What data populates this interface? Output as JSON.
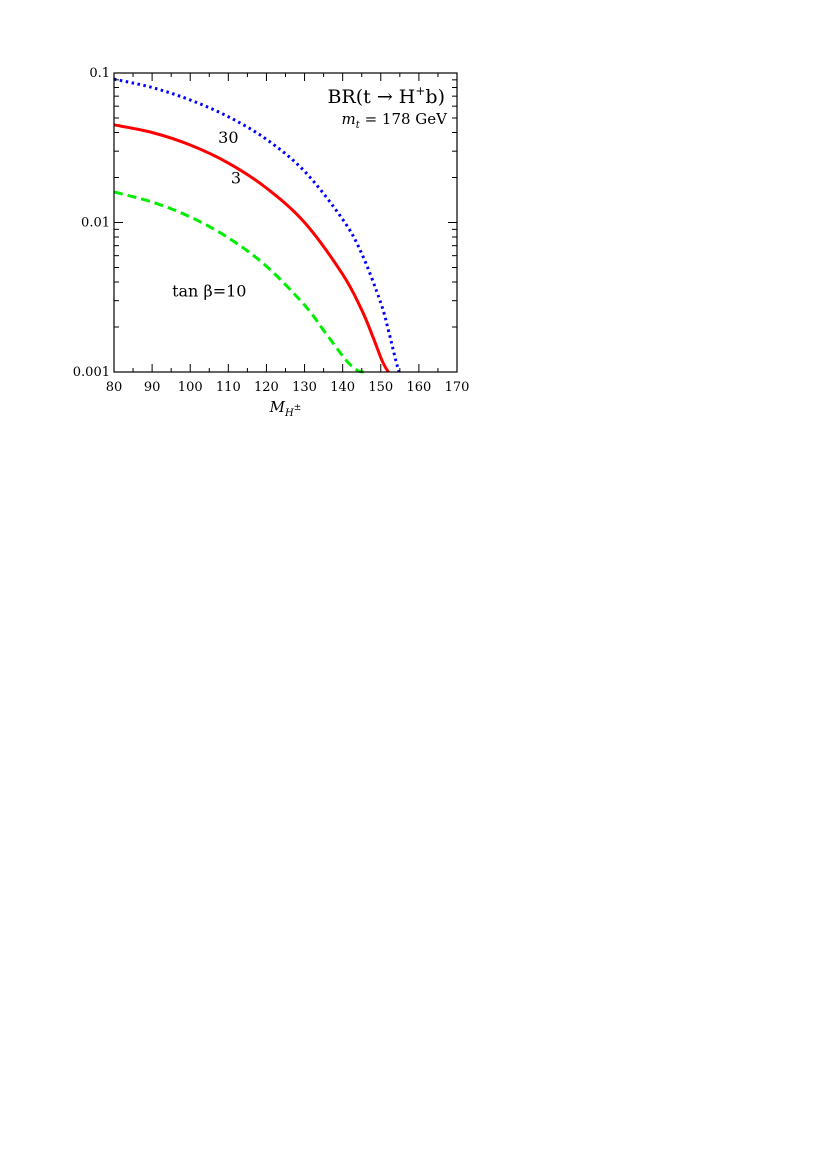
{
  "chart_data": {
    "type": "line",
    "title_main": "BR(t → H",
    "title_sup": "+",
    "title_end": "b)",
    "subtitle_var": "m",
    "subtitle_sub": "t",
    "subtitle_rest": " = 178 GeV",
    "xlabel_main": "M",
    "xlabel_sub": "H",
    "xlabel_sup": "±",
    "ylabel": "",
    "xlim": [
      80,
      170
    ],
    "ylim": [
      0.001,
      0.1
    ],
    "yscale": "log",
    "grid": false,
    "x_ticks": [
      80,
      90,
      100,
      110,
      120,
      130,
      140,
      150,
      160,
      170
    ],
    "x_tick_labels": [
      "80",
      "90",
      "100",
      "110",
      "120",
      "130",
      "140",
      "150",
      "160",
      "170"
    ],
    "y_ticks": [
      0.001,
      0.01,
      0.1
    ],
    "y_tick_labels": [
      "0.001",
      "0.01",
      "0.1"
    ],
    "series": [
      {
        "name": "30",
        "color": "#0000ff",
        "style": "dotted",
        "x": [
          80,
          90,
          100,
          110,
          120,
          130,
          140,
          145,
          150,
          152,
          153,
          154,
          154.8
        ],
        "y": [
          0.091,
          0.08,
          0.066,
          0.051,
          0.036,
          0.022,
          0.0105,
          0.0062,
          0.0029,
          0.0019,
          0.0015,
          0.00118,
          0.001
        ]
      },
      {
        "name": "3",
        "color": "#ff0000",
        "style": "solid",
        "x": [
          80,
          90,
          100,
          110,
          120,
          130,
          140,
          145,
          148,
          150,
          151,
          152
        ],
        "y": [
          0.045,
          0.04,
          0.033,
          0.025,
          0.017,
          0.01,
          0.0045,
          0.0026,
          0.0017,
          0.00125,
          0.0011,
          0.001
        ]
      },
      {
        "name": "tan β=10",
        "color": "#00ee00",
        "style": "dashed",
        "x": [
          80,
          90,
          100,
          110,
          120,
          130,
          135,
          140,
          142,
          144,
          145.5
        ],
        "y": [
          0.016,
          0.0137,
          0.0109,
          0.0079,
          0.0051,
          0.0028,
          0.0019,
          0.00128,
          0.00112,
          0.00102,
          0.001
        ]
      }
    ],
    "annotations": [
      {
        "text": "30",
        "x": 110,
        "y": 0.034
      },
      {
        "text": "3",
        "x": 112,
        "y": 0.0182
      },
      {
        "text": "tan β=10",
        "x": 105,
        "y": 0.0032
      }
    ]
  }
}
